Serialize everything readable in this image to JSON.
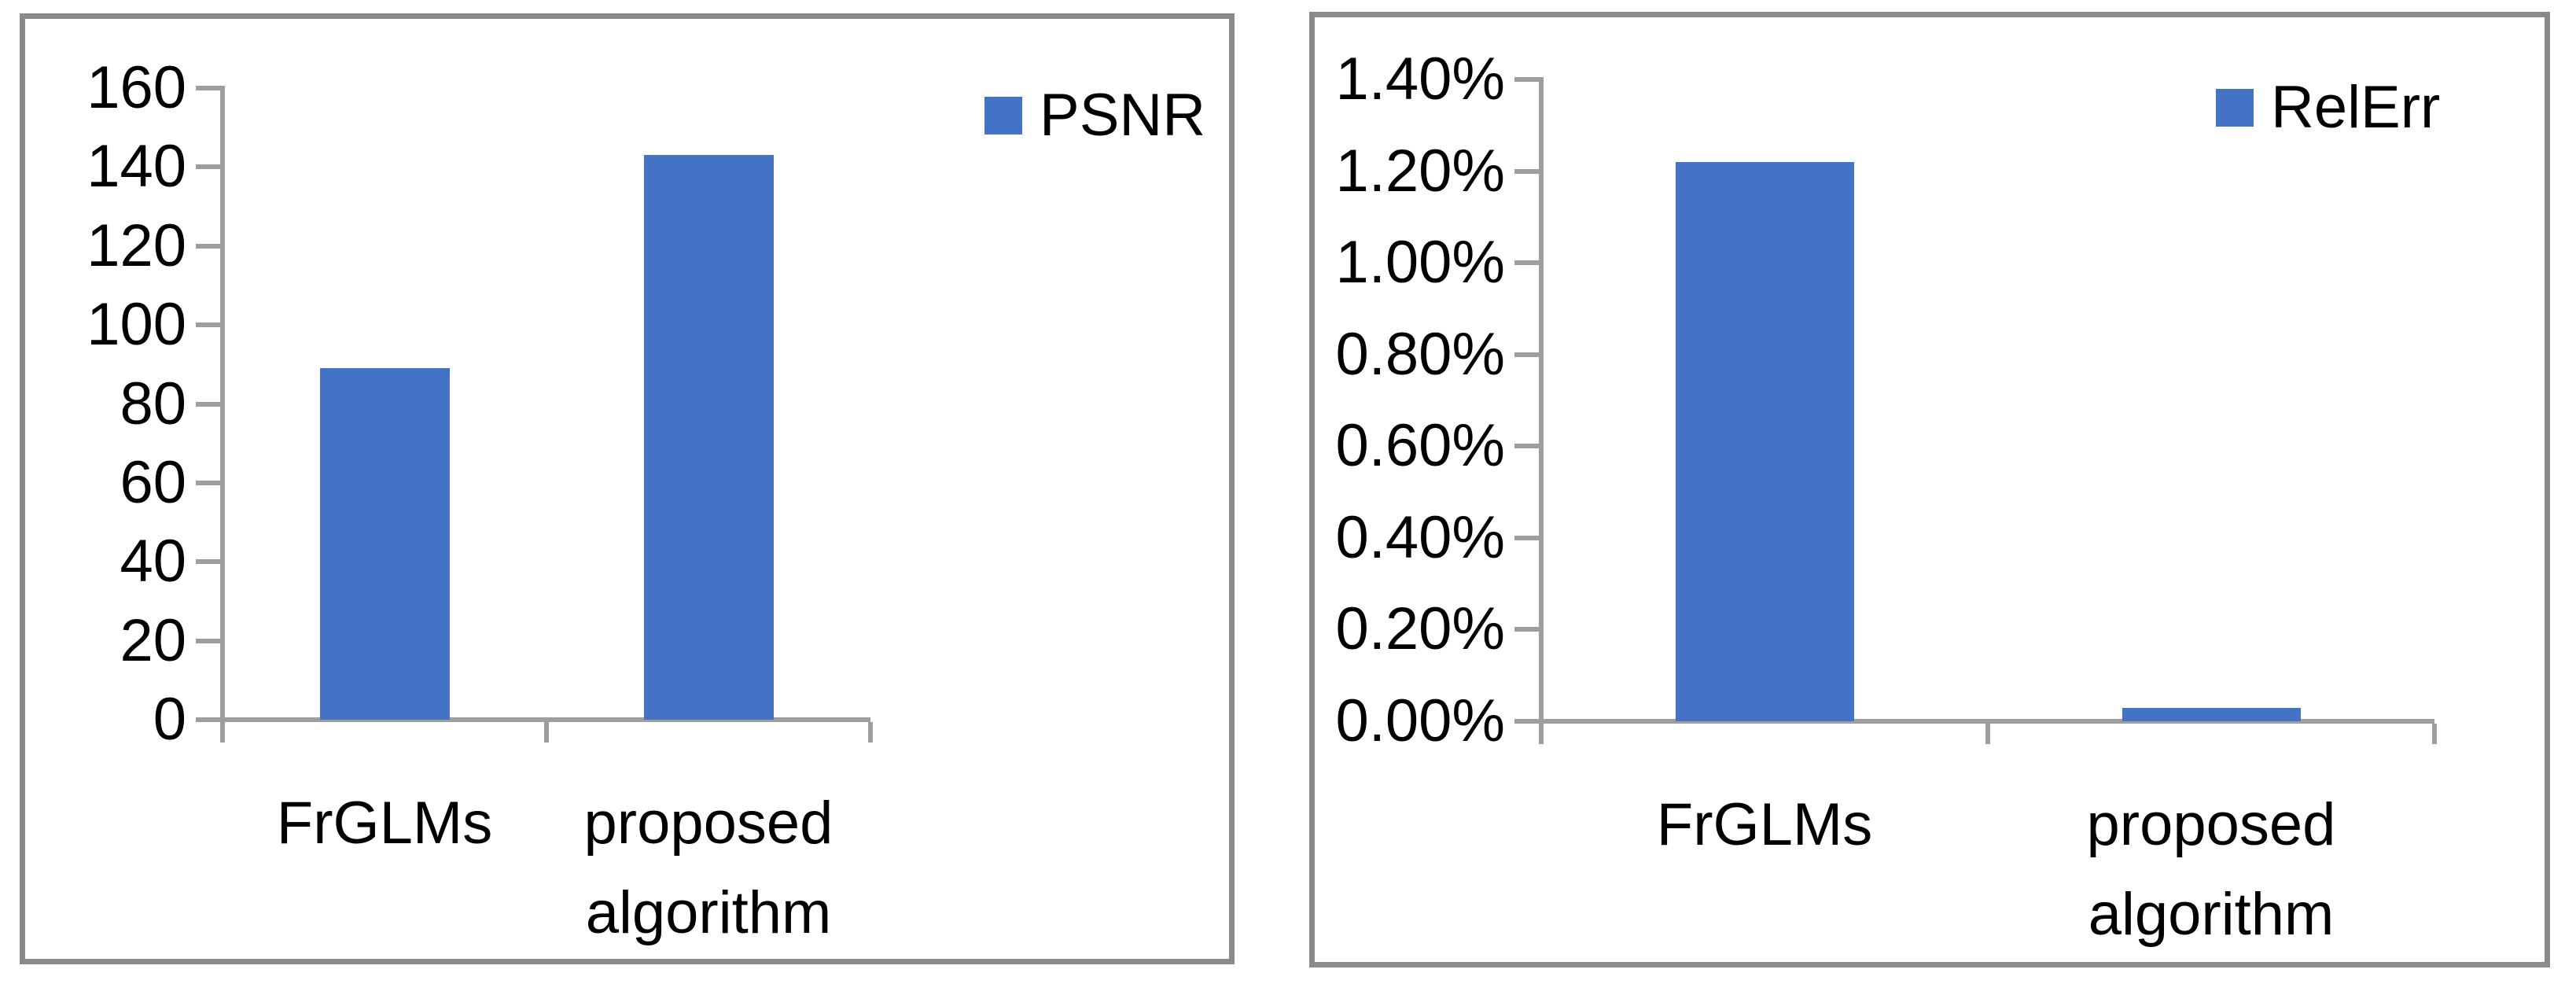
{
  "colors": {
    "bar": "#4472C4",
    "axis": "#9e9e9e",
    "panel_border": "#8a8a8a",
    "text": "#000000",
    "background": "#ffffff"
  },
  "chart_data": [
    {
      "type": "bar",
      "title": "",
      "categories": [
        "FrGLMs",
        "proposed algorithm"
      ],
      "series": [
        {
          "name": "PSNR",
          "values": [
            89,
            143
          ]
        }
      ],
      "ylim": [
        0,
        160
      ],
      "ytick_labels": [
        "0",
        "20",
        "40",
        "60",
        "80",
        "100",
        "120",
        "140",
        "160"
      ],
      "legend": {
        "label": "PSNR",
        "position": "top-right"
      },
      "grid": false,
      "bar_color": "#4472C4",
      "xlabel": "",
      "ylabel": ""
    },
    {
      "type": "bar",
      "title": "",
      "categories": [
        "FrGLMs",
        "proposed algorithm"
      ],
      "series": [
        {
          "name": "RelErr",
          "values": [
            1.22,
            0.03
          ]
        }
      ],
      "unit": "%",
      "ylim": [
        0,
        1.4
      ],
      "ytick_labels": [
        "0.00%",
        "0.20%",
        "0.40%",
        "0.60%",
        "0.80%",
        "1.00%",
        "1.20%",
        "1.40%"
      ],
      "legend": {
        "label": "RelErr",
        "position": "top-right"
      },
      "grid": false,
      "bar_color": "#4472C4",
      "xlabel": "",
      "ylabel": ""
    }
  ]
}
